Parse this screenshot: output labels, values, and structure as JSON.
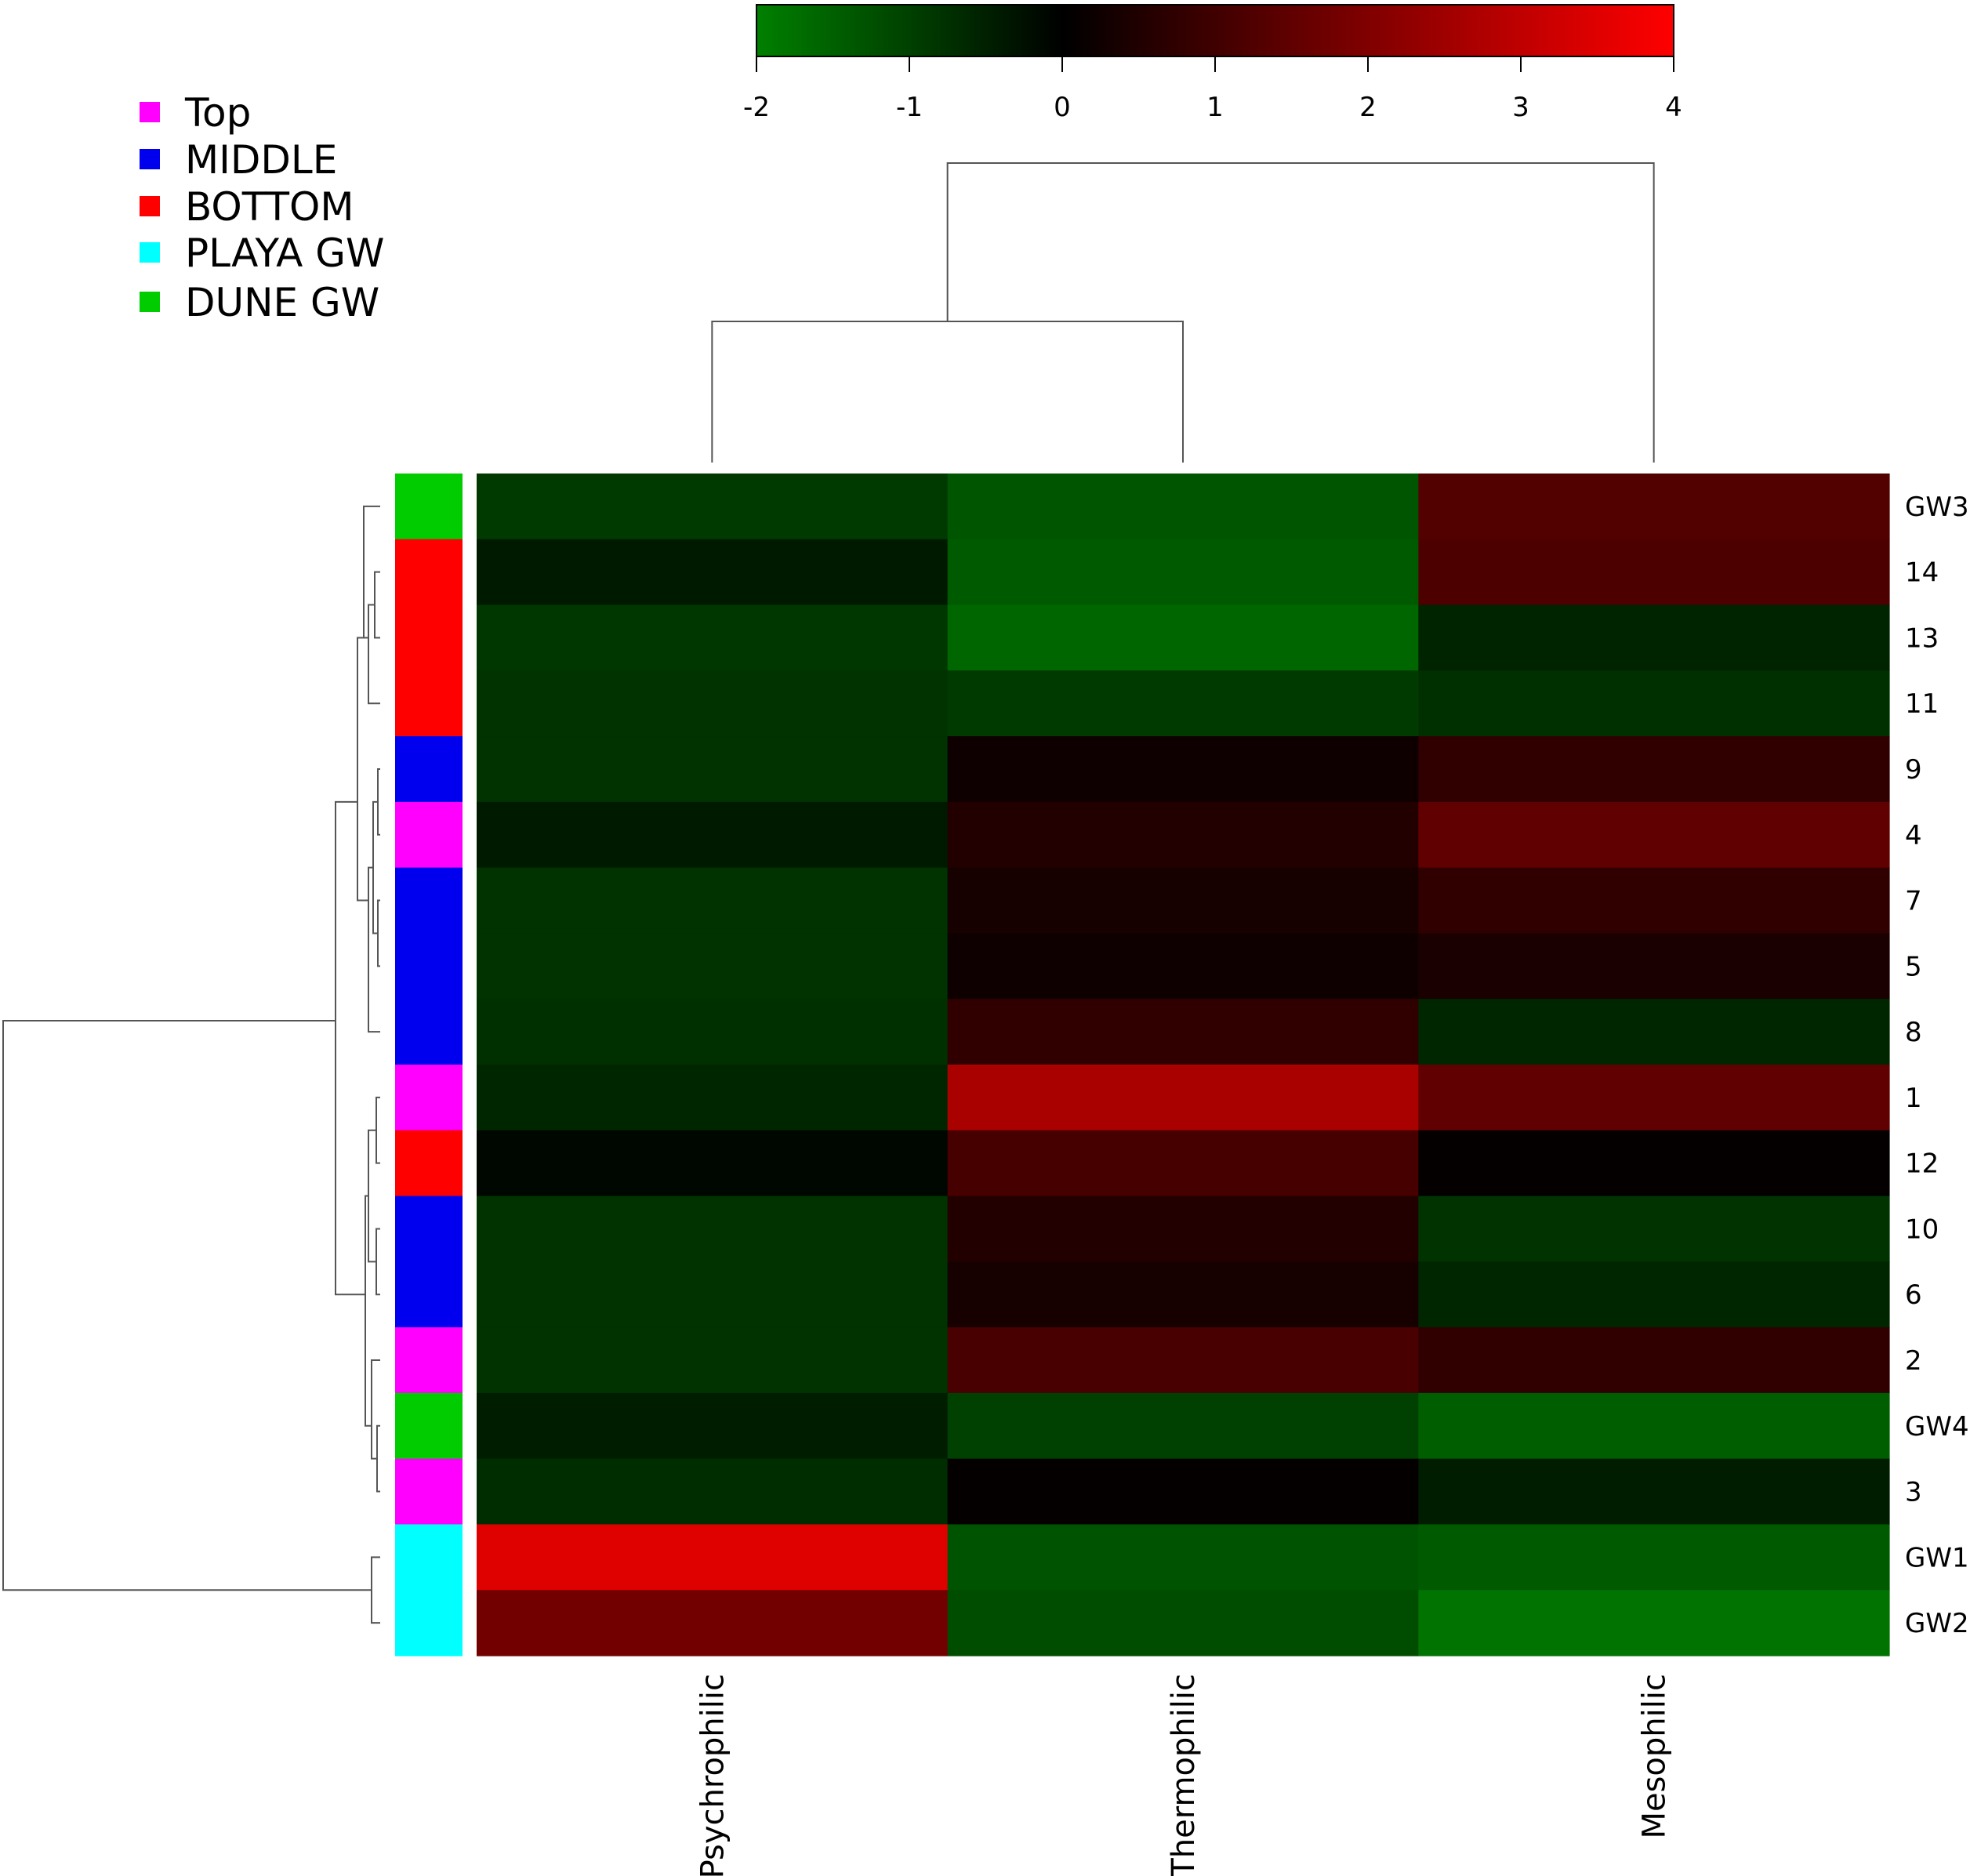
{
  "chart_data": {
    "type": "heatmap",
    "columns": [
      "Psychrophilic",
      "Thermophilic",
      "Mesophilic"
    ],
    "rows": [
      {
        "label": "GW3",
        "group": "DUNE GW",
        "values": [
          -0.9,
          -1.35,
          1.3
        ]
      },
      {
        "label": "14",
        "group": "BOTTOM",
        "values": [
          -0.4,
          -1.4,
          1.2
        ]
      },
      {
        "label": "13",
        "group": "BOTTOM",
        "values": [
          -0.85,
          -1.6,
          -0.55
        ]
      },
      {
        "label": "11",
        "group": "BOTTOM",
        "values": [
          -0.8,
          -0.9,
          -0.75
        ]
      },
      {
        "label": "9",
        "group": "MIDDLE",
        "values": [
          -0.8,
          0.22,
          0.75
        ]
      },
      {
        "label": "4",
        "group": "Top",
        "values": [
          -0.4,
          0.55,
          1.5
        ]
      },
      {
        "label": "7",
        "group": "MIDDLE",
        "values": [
          -0.8,
          0.35,
          0.75
        ]
      },
      {
        "label": "5",
        "group": "MIDDLE",
        "values": [
          -0.8,
          0.22,
          0.4
        ]
      },
      {
        "label": "8",
        "group": "MIDDLE",
        "values": [
          -0.75,
          0.75,
          -0.6
        ]
      },
      {
        "label": "1",
        "group": "Top",
        "values": [
          -0.6,
          2.65,
          1.5
        ]
      },
      {
        "label": "12",
        "group": "BOTTOM",
        "values": [
          -0.1,
          1.1,
          0.08
        ]
      },
      {
        "label": "10",
        "group": "MIDDLE",
        "values": [
          -0.8,
          0.55,
          -0.8
        ]
      },
      {
        "label": "6",
        "group": "MIDDLE",
        "values": [
          -0.8,
          0.35,
          -0.6
        ]
      },
      {
        "label": "2",
        "group": "Top",
        "values": [
          -0.8,
          1.15,
          0.75
        ]
      },
      {
        "label": "GW4",
        "group": "DUNE GW",
        "values": [
          -0.45,
          -1.0,
          -1.45
        ]
      },
      {
        "label": "3",
        "group": "Top",
        "values": [
          -0.7,
          0.06,
          -0.45
        ]
      },
      {
        "label": "GW1",
        "group": "PLAYA GW",
        "values": [
          3.5,
          -1.3,
          -1.4
        ]
      },
      {
        "label": "GW2",
        "group": "PLAYA GW",
        "values": [
          1.8,
          -1.2,
          -1.8
        ]
      }
    ],
    "color_scale": {
      "ticks": [
        "-2",
        "-1",
        "0",
        "1",
        "2",
        "3",
        "4"
      ],
      "min": -2,
      "max": 4,
      "low_color": "#008000",
      "mid_color": "#000000",
      "high_color": "#ff0000"
    },
    "legend": {
      "placement": "top-left",
      "items": [
        {
          "label": "Top",
          "color": "#ff00ff"
        },
        {
          "label": "MIDDLE",
          "color": "#0000ee"
        },
        {
          "label": "BOTTOM",
          "color": "#ff0000"
        },
        {
          "label": "PLAYA GW",
          "color": "#00ffff"
        },
        {
          "label": "DUNE GW",
          "color": "#00cc00"
        }
      ]
    },
    "dendrogram": {
      "columns": "Psychrophilic and Thermophilic join first; Mesophilic joins last",
      "rows": "PLAYA GW samples (GW1, GW2) form a separate cluster from all others"
    }
  }
}
